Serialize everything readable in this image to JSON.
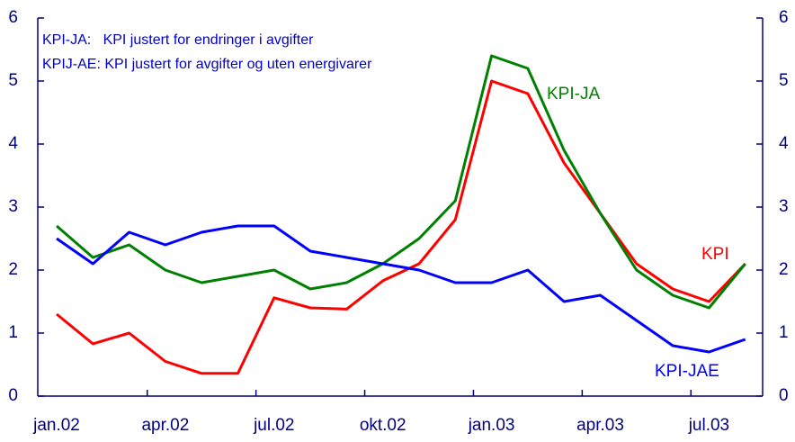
{
  "chart_data": {
    "type": "line",
    "annotations": [
      "KPI-JA:   KPI justert for endringer i avgifter",
      "KPIJ-AE: KPI justert for avgifter og uten energivarer"
    ],
    "categories": [
      "jan.02",
      null,
      null,
      "apr.02",
      null,
      null,
      "jul.02",
      null,
      null,
      "okt.02",
      null,
      null,
      "jan.03",
      null,
      null,
      "apr.03",
      null,
      null,
      "jul.03",
      null
    ],
    "series": [
      {
        "name": "KPI",
        "color": "#ff0000",
        "values": [
          1.3,
          0.83,
          1.0,
          0.55,
          0.36,
          0.36,
          1.56,
          1.4,
          1.38,
          1.83,
          2.1,
          2.8,
          5.0,
          4.8,
          3.7,
          2.9,
          2.1,
          1.7,
          1.5,
          2.1
        ]
      },
      {
        "name": "KPI-JA",
        "color": "#008000",
        "values": [
          2.7,
          2.2,
          2.4,
          2.0,
          1.8,
          1.9,
          2.0,
          1.7,
          1.8,
          2.1,
          2.5,
          3.1,
          5.4,
          5.2,
          3.9,
          2.9,
          2.0,
          1.6,
          1.4,
          2.1
        ]
      },
      {
        "name": "KPI-JAE",
        "color": "#0000ff",
        "values": [
          2.5,
          2.1,
          2.6,
          2.4,
          2.6,
          2.7,
          2.7,
          2.3,
          2.2,
          2.1,
          2.0,
          1.8,
          1.8,
          2.0,
          1.5,
          1.6,
          1.2,
          0.8,
          0.7,
          0.9
        ]
      }
    ],
    "ylim": [
      0,
      6
    ],
    "yticks": [
      0,
      1,
      2,
      3,
      4,
      5,
      6
    ],
    "y2lim": [
      0,
      6
    ],
    "y2ticks": [
      0,
      1,
      2,
      3,
      4,
      5,
      6
    ]
  }
}
